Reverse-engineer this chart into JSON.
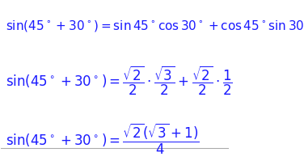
{
  "background_color": "#ffffff",
  "text_color": "#1a1aff",
  "fontsize_line1": 11,
  "fontsize_line2": 12,
  "fontsize_line3": 12,
  "figsize": [
    3.76,
    1.99
  ],
  "dpi": 100,
  "border_color": "#aaaaaa",
  "border_linewidth": 0.8
}
